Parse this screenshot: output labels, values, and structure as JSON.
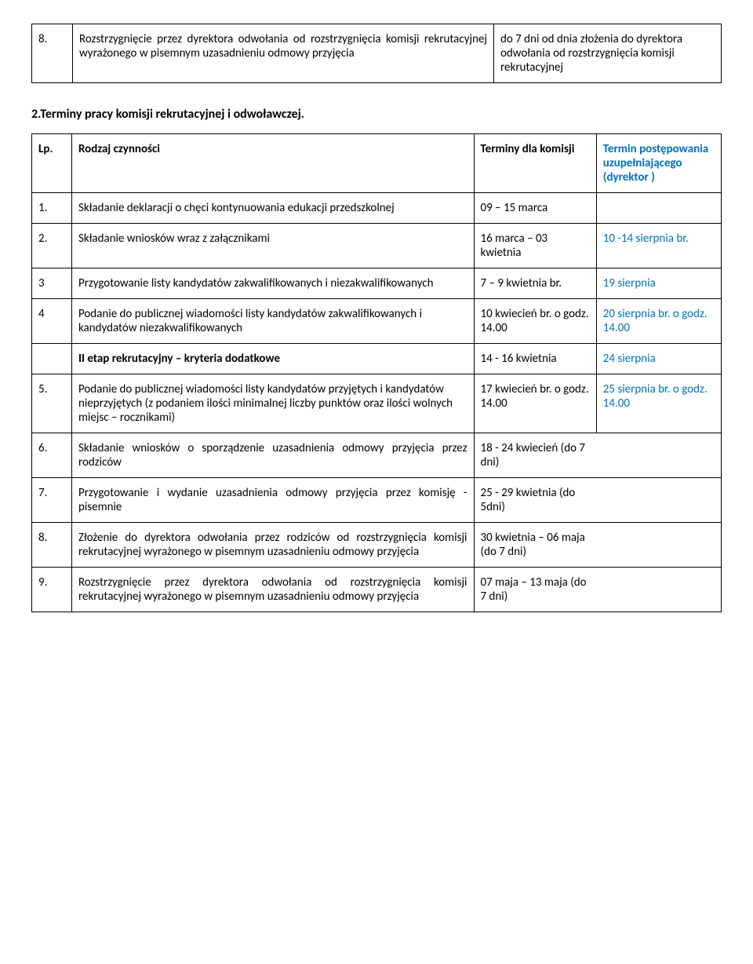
{
  "table1": {
    "row": {
      "lp": "8.",
      "activity": "Rozstrzygnięcie przez dyrektora odwołania od rozstrzygnięcia komisji rekrutacyjnej wyrażonego w pisemnym uzasadnieniu odmowy przyjęcia",
      "date": "do 7 dni od dnia złożenia do dyrektora odwołania od rozstrzygnięcia komisji rekrutacyjnej"
    }
  },
  "section_heading": "2.Terminy pracy komisji rekrutacyjnej i odwoławczej.",
  "table2": {
    "header": {
      "lp": "Lp.",
      "activity": "Rodzaj czynności",
      "date": "Terminy dla komisji",
      "extra": "Termin postępowania uzupełniającego (dyrektor )"
    },
    "rows": [
      {
        "lp": "1.",
        "activity": "Składanie deklaracji o chęci kontynuowania edukacji przedszkolnej",
        "date": "09 – 15 marca",
        "extra": ""
      },
      {
        "lp": "2.",
        "activity": "Składanie wniosków wraz z załącznikami",
        "date": "16 marca – 03 kwietnia",
        "extra": " 10 -14 sierpnia br."
      },
      {
        "lp": "3",
        "activity": "Przygotowanie listy kandydatów zakwalifikowanych i niezakwalifikowanych",
        "date": "7 – 9 kwietnia br.",
        "extra": "19 sierpnia"
      },
      {
        "lp": "4",
        "activity": "Podanie do publicznej wiadomości listy kandydatów zakwalifikowanych i kandydatów  niezakwalifikowanych",
        "date": "10 kwiecień br. o godz. 14.00",
        "extra": "20 sierpnia br. o godz. 14.00"
      },
      {
        "lp": "",
        "activity": "II etap rekrutacyjny – kryteria dodatkowe",
        "date": "14 - 16  kwietnia",
        "extra": "24 sierpnia",
        "bold_activity": true
      },
      {
        "lp": "5.",
        "activity": "Podanie do publicznej wiadomości  listy kandydatów przyjętych i kandydatów nieprzyjętych (z podaniem ilości minimalnej liczby punktów oraz ilości wolnych miejsc – rocznikami)",
        "date": "17  kwiecień br. o godz. 14.00",
        "extra": "25 sierpnia br. o godz. 14.00"
      },
      {
        "lp": "6.",
        "activity": "Składanie wniosków o sporządzenie uzasadnienia odmowy przyjęcia przez rodziców",
        "date_merged": "18 - 24 kwiecień (do 7 dni)"
      },
      {
        "lp": "7.",
        "activity": "Przygotowanie i wydanie uzasadnienia odmowy przyjęcia przez komisję - pisemnie",
        "date_merged": "25 - 29 kwietnia (do 5dni)"
      },
      {
        "lp": "8.",
        "activity": "Złożenie do dyrektora odwołania przez rodziców od rozstrzygnięcia komisji rekrutacyjnej wyrażonego w pisemnym uzasadnieniu odmowy przyjęcia",
        "date_merged": "30 kwietnia – 06 maja  (do 7 dni)"
      },
      {
        "lp": "9.",
        "activity": "Rozstrzygnięcie przez dyrektora odwołania od rozstrzygnięcia komisji rekrutacyjnej wyrażonego w pisemnym uzasadnieniu odmowy przyjęcia",
        "date_merged": "07 maja – 13 maja (do 7 dni)"
      }
    ]
  }
}
